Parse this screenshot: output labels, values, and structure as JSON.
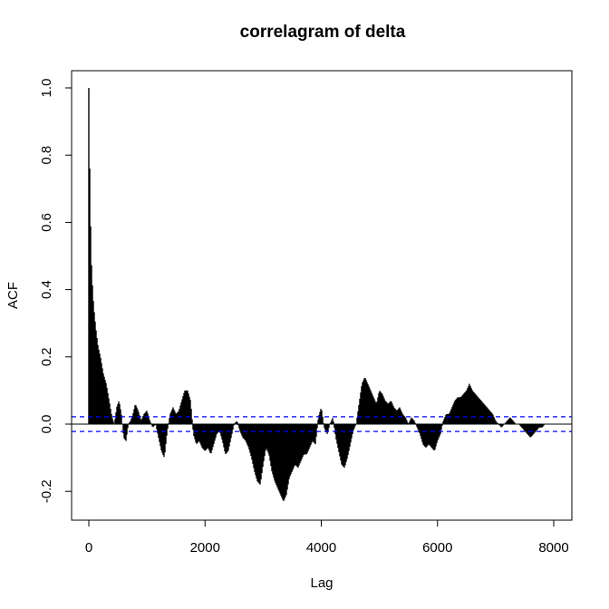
{
  "chart_data": {
    "type": "bar",
    "title": "correlagram of delta",
    "xlabel": "Lag",
    "ylabel": "ACF",
    "xlim": [
      0,
      8000
    ],
    "ylim": [
      -0.25,
      1.0
    ],
    "xticks": [
      0,
      2000,
      4000,
      6000,
      8000
    ],
    "xtick_labels": [
      "0",
      "2000",
      "4000",
      "6000",
      "8000"
    ],
    "yticks": [
      -0.2,
      0.0,
      0.2,
      0.4,
      0.6,
      0.8,
      1.0
    ],
    "ytick_labels": [
      "-0.2",
      "0.0",
      "0.2",
      "0.4",
      "0.6",
      "0.8",
      "1.0"
    ],
    "confidence_bound": 0.022,
    "colors": {
      "bars": "#000000",
      "bound_lines": "#0000ff",
      "zero_line": "#000000"
    },
    "grid": false,
    "series": [
      {
        "x": [
          0,
          10,
          20,
          30,
          40,
          60,
          80,
          100,
          130,
          160,
          200,
          250,
          300,
          350,
          400,
          440,
          480,
          520,
          560,
          600,
          640,
          680,
          720,
          760,
          800,
          850,
          900,
          950,
          1000,
          1050,
          1100,
          1150,
          1200,
          1250,
          1300,
          1350,
          1400,
          1450,
          1500,
          1550,
          1600,
          1650,
          1700,
          1750,
          1800,
          1850,
          1900,
          1950,
          2000,
          2050,
          2100,
          2150,
          2200,
          2250,
          2300,
          2350,
          2400,
          2450,
          2500,
          2550,
          2600,
          2650,
          2700,
          2750,
          2800,
          2850,
          2900,
          2950,
          3000,
          3050,
          3100,
          3150,
          3200,
          3250,
          3300,
          3350,
          3400,
          3450,
          3500,
          3550,
          3600,
          3650,
          3700,
          3750,
          3800,
          3850,
          3900,
          3950,
          4000,
          4050,
          4100,
          4150,
          4200,
          4250,
          4300,
          4350,
          4400,
          4450,
          4500,
          4550,
          4600,
          4650,
          4700,
          4750,
          4800,
          4850,
          4900,
          4950,
          5000,
          5050,
          5100,
          5150,
          5200,
          5250,
          5300,
          5350,
          5400,
          5450,
          5500,
          5550,
          5600,
          5650,
          5700,
          5750,
          5800,
          5850,
          5900,
          5950,
          6000,
          6050,
          6100,
          6150,
          6200,
          6250,
          6300,
          6350,
          6400,
          6450,
          6500,
          6550,
          6600,
          6650,
          6700,
          6750,
          6800,
          6850,
          6900,
          6950,
          7000,
          7050,
          7100,
          7150,
          7200,
          7250,
          7300,
          7350,
          7400,
          7450,
          7500,
          7550,
          7600,
          7650,
          7700,
          7750,
          7800,
          7850,
          7900,
          7950,
          8000
        ],
        "values": [
          1.0,
          0.85,
          0.69,
          0.6,
          0.5,
          0.42,
          0.36,
          0.32,
          0.27,
          0.23,
          0.2,
          0.15,
          0.12,
          0.07,
          0.02,
          0.0,
          0.05,
          0.07,
          0.03,
          -0.04,
          -0.05,
          0.0,
          0.01,
          0.03,
          0.06,
          0.04,
          0.01,
          0.03,
          0.04,
          0.01,
          -0.01,
          0.0,
          -0.04,
          -0.08,
          -0.1,
          -0.02,
          0.03,
          0.05,
          0.03,
          0.04,
          0.07,
          0.1,
          0.1,
          0.07,
          -0.03,
          -0.06,
          -0.05,
          -0.07,
          -0.08,
          -0.07,
          -0.09,
          -0.06,
          -0.03,
          -0.02,
          -0.05,
          -0.09,
          -0.08,
          -0.04,
          0.0,
          0.01,
          -0.02,
          -0.04,
          -0.05,
          -0.07,
          -0.1,
          -0.14,
          -0.17,
          -0.18,
          -0.12,
          -0.07,
          -0.09,
          -0.14,
          -0.17,
          -0.19,
          -0.21,
          -0.23,
          -0.21,
          -0.16,
          -0.14,
          -0.12,
          -0.13,
          -0.11,
          -0.09,
          -0.09,
          -0.07,
          -0.05,
          -0.06,
          0.02,
          0.05,
          -0.01,
          -0.03,
          0.0,
          0.02,
          -0.04,
          -0.08,
          -0.12,
          -0.13,
          -0.1,
          -0.06,
          -0.02,
          0.0,
          0.06,
          0.12,
          0.14,
          0.12,
          0.1,
          0.08,
          0.06,
          0.1,
          0.09,
          0.07,
          0.06,
          0.07,
          0.05,
          0.04,
          0.05,
          0.03,
          0.02,
          0.0,
          0.02,
          0.01,
          -0.01,
          -0.03,
          -0.06,
          -0.07,
          -0.06,
          -0.07,
          -0.08,
          -0.05,
          -0.03,
          0.01,
          0.03,
          0.03,
          0.05,
          0.07,
          0.08,
          0.08,
          0.09,
          0.1,
          0.12,
          0.1,
          0.09,
          0.08,
          0.07,
          0.06,
          0.05,
          0.04,
          0.03,
          0.01,
          0.0,
          -0.01,
          0.0,
          0.01,
          0.02,
          0.01,
          0.0,
          0.0,
          -0.01,
          -0.02,
          -0.03,
          -0.04,
          -0.03,
          -0.02,
          -0.01,
          -0.01,
          0.0,
          0.0,
          0.0,
          0.0
        ]
      }
    ]
  }
}
